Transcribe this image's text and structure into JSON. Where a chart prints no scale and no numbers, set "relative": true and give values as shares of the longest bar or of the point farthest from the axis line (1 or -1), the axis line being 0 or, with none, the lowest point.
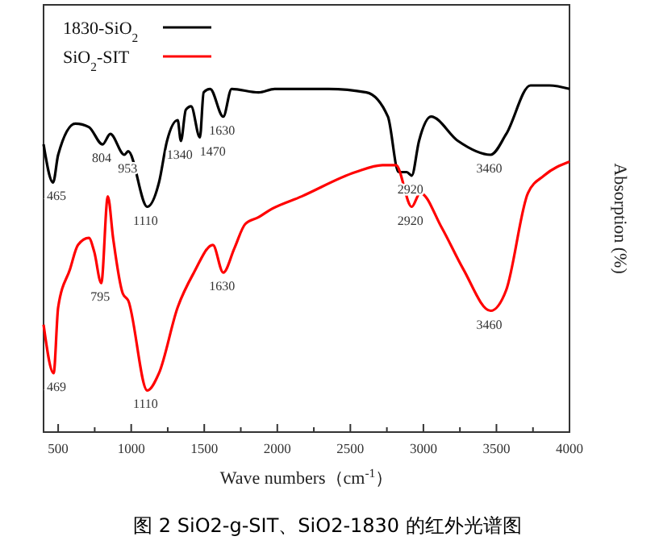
{
  "chart_data": {
    "type": "line",
    "relative": true,
    "title": "图 2 SiO2-g-SIT、SiO2-1830 的红外光谱图",
    "xlabel": "Wave numbers（cm$^{-1}$）",
    "ylabel": "Absorption (%)",
    "xlim": [
      400,
      4000
    ],
    "xticks": [
      500,
      {
        "value": 750,
        "label": null
      },
      1000,
      {
        "value": 1250,
        "label": null
      },
      1500,
      {
        "value": 1750,
        "label": null
      },
      2000,
      {
        "value": 2250,
        "label": null
      },
      2500,
      {
        "value": 2750,
        "label": null
      },
      3000,
      {
        "value": 3250,
        "label": null
      },
      3500,
      {
        "value": 3750,
        "label": null
      },
      4000
    ],
    "legend": "top left",
    "grid": false,
    "tick_labels": "x",
    "series": [
      {
        "name": "1830-SiO$_{2}$",
        "color": "#000000",
        "x": [
          400,
          465,
          500,
          618,
          710,
          804,
          857,
          953,
          979,
          1110,
          1190,
          1245,
          1318,
          1340,
          1374,
          1410,
          1470,
          1496,
          1540,
          1630,
          1687,
          1872,
          1982,
          2351,
          2610,
          2757,
          2830,
          2886,
          2920,
          2970,
          3052,
          3236,
          3460,
          3567,
          3733,
          3863,
          4000
        ],
        "values": [
          0.83,
          0.72,
          0.8,
          0.89,
          0.88,
          0.83,
          0.86,
          0.8,
          0.81,
          0.65,
          0.72,
          0.84,
          0.9,
          0.84,
          0.93,
          0.94,
          0.85,
          0.98,
          0.99,
          0.91,
          0.99,
          0.98,
          0.99,
          0.99,
          0.98,
          0.91,
          0.75,
          0.75,
          0.74,
          0.84,
          0.91,
          0.84,
          0.8,
          0.86,
          1,
          1,
          0.99
        ]
      },
      {
        "name": "SiO$_{2}$-SIT",
        "color": "#ff0000",
        "x": [
          400,
          469,
          500,
          581,
          636,
          710,
          747,
          795,
          840,
          876,
          942,
          979,
          1110,
          1190,
          1318,
          1429,
          1559,
          1630,
          1706,
          1780,
          1872,
          1946,
          2167,
          2535,
          2720,
          2812,
          2920,
          2978,
          3125,
          3273,
          3460,
          3567,
          3716,
          3826,
          4000
        ],
        "values": [
          0.31,
          0.17,
          0.36,
          0.47,
          0.54,
          0.56,
          0.52,
          0.43,
          0.68,
          0.56,
          0.4,
          0.38,
          0.12,
          0.17,
          0.36,
          0.46,
          0.54,
          0.46,
          0.53,
          0.6,
          0.62,
          0.64,
          0.68,
          0.75,
          0.77,
          0.77,
          0.65,
          0.69,
          0.59,
          0.47,
          0.35,
          0.41,
          0.69,
          0.74,
          0.78
        ]
      }
    ],
    "annotations": [
      {
        "text": "465",
        "x": 465,
        "y": 0.72
      },
      {
        "text": "804",
        "x": 804,
        "y": 0.83
      },
      {
        "text": "953",
        "x": 953,
        "y": 0.8
      },
      {
        "text": "1110",
        "x": 1110,
        "y": 0.65
      },
      {
        "text": "1340",
        "x": 1340,
        "y": 0.84
      },
      {
        "text": "1470",
        "x": 1470,
        "y": 0.85
      },
      {
        "text": "1630",
        "x": 1630,
        "y": 0.91
      },
      {
        "text": "2920",
        "x": 2920,
        "y": 0.74
      },
      {
        "text": "3460",
        "x": 3460,
        "y": 0.8
      },
      {
        "text": "469",
        "x": 469,
        "y": 0.17
      },
      {
        "text": "795",
        "x": 795,
        "y": 0.43
      },
      {
        "text": "1110",
        "x": 1110,
        "y": 0.12
      },
      {
        "text": "1630",
        "x": 1630,
        "y": 0.46
      },
      {
        "text": "2920",
        "x": 2920,
        "y": 0.65
      },
      {
        "text": "3460",
        "x": 3460,
        "y": 0.35
      }
    ]
  }
}
